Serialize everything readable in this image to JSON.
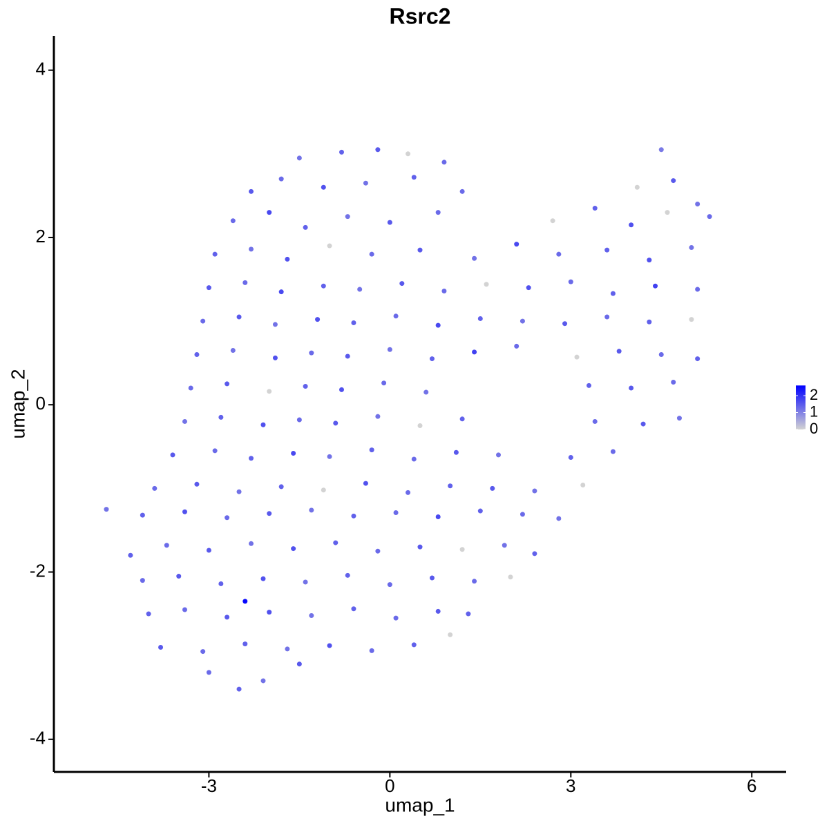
{
  "chart_data": {
    "type": "scatter",
    "title": "Rsrc2",
    "x_label": "umap_1",
    "y_label": "umap_2",
    "xlim": [
      -5.57,
      6.57
    ],
    "ylim": [
      -4.39,
      4.41
    ],
    "xticks": [
      -3,
      0,
      3,
      6
    ],
    "yticks": [
      -4,
      -2,
      0,
      2,
      4
    ],
    "grid": false,
    "color_low": "#d3d3d3",
    "color_high": "#0000ff",
    "color_lim": [
      0,
      2.6
    ],
    "color_ticks": [
      0,
      1,
      2
    ],
    "legend_position": "right",
    "x": [
      -1.5,
      -0.8,
      -0.2,
      0.3,
      0.9,
      4.5,
      -2.3,
      -1.8,
      -1.1,
      -0.4,
      0.4,
      1.2,
      4.1,
      4.7,
      5.1,
      -2.6,
      -2.0,
      -1.4,
      -0.7,
      0.0,
      0.8,
      2.7,
      3.4,
      4.0,
      4.6,
      5.3,
      -2.9,
      -2.3,
      -1.7,
      -1.0,
      -0.3,
      0.5,
      1.4,
      2.1,
      2.8,
      3.6,
      4.3,
      5.0,
      -3.0,
      -2.4,
      -1.8,
      -1.1,
      -0.5,
      0.2,
      0.9,
      1.6,
      2.3,
      3.0,
      3.7,
      4.4,
      5.1,
      -3.1,
      -2.5,
      -1.9,
      -1.2,
      -0.6,
      0.1,
      0.8,
      1.5,
      2.2,
      2.9,
      3.6,
      4.3,
      5.0,
      -3.2,
      -2.6,
      -1.9,
      -1.3,
      -0.7,
      0.0,
      0.7,
      1.4,
      2.1,
      3.1,
      3.8,
      4.5,
      5.1,
      -3.3,
      -2.7,
      -2.0,
      -1.4,
      -0.8,
      -0.1,
      0.6,
      3.3,
      4.0,
      4.7,
      -3.4,
      -2.8,
      -2.1,
      -1.5,
      -0.9,
      -0.2,
      0.5,
      1.2,
      3.4,
      4.2,
      4.8,
      -3.6,
      -2.9,
      -2.3,
      -1.6,
      -1.0,
      -0.3,
      0.4,
      1.1,
      1.8,
      3.0,
      3.7,
      -3.9,
      -3.2,
      -2.5,
      -1.8,
      -1.1,
      -0.4,
      0.3,
      1.0,
      1.7,
      2.4,
      3.2,
      -4.7,
      -4.1,
      -3.4,
      -2.7,
      -2.0,
      -1.3,
      -0.6,
      0.1,
      0.8,
      1.5,
      2.2,
      2.8,
      -4.3,
      -3.7,
      -3.0,
      -2.3,
      -1.6,
      -0.9,
      -0.2,
      0.5,
      1.2,
      1.9,
      2.4,
      -4.1,
      -3.5,
      -2.8,
      -2.1,
      -1.4,
      -0.7,
      0.0,
      0.7,
      1.4,
      2.0,
      -4.0,
      -3.4,
      -2.7,
      -2.4,
      -2.0,
      -1.3,
      -0.6,
      0.1,
      0.8,
      1.3,
      -3.8,
      -3.1,
      -2.4,
      -1.7,
      -1.0,
      -0.3,
      0.4,
      1.0,
      -3.0,
      -2.5,
      -2.1,
      -1.5
    ],
    "values": [
      2.95,
      3.02,
      3.05,
      3.0,
      2.9,
      3.05,
      2.55,
      2.7,
      2.6,
      2.65,
      2.72,
      2.55,
      2.6,
      2.68,
      2.4,
      2.2,
      2.3,
      2.12,
      2.25,
      2.18,
      2.3,
      2.2,
      2.35,
      2.15,
      2.3,
      2.25,
      1.8,
      1.86,
      1.74,
      1.9,
      1.8,
      1.85,
      1.75,
      1.92,
      1.8,
      1.85,
      1.73,
      1.88,
      1.4,
      1.46,
      1.35,
      1.42,
      1.38,
      1.45,
      1.36,
      1.44,
      1.4,
      1.47,
      1.33,
      1.42,
      1.38,
      1.0,
      1.05,
      0.96,
      1.02,
      0.98,
      1.06,
      0.95,
      1.03,
      1.0,
      0.97,
      1.05,
      0.99,
      1.02,
      0.6,
      0.65,
      0.56,
      0.62,
      0.58,
      0.66,
      0.55,
      0.63,
      0.7,
      0.57,
      0.64,
      0.6,
      0.55,
      0.2,
      0.25,
      0.16,
      0.22,
      0.18,
      0.26,
      0.15,
      0.23,
      0.2,
      0.27,
      -0.2,
      -0.15,
      -0.24,
      -0.18,
      -0.22,
      -0.14,
      -0.25,
      -0.17,
      -0.2,
      -0.23,
      -0.16,
      -0.6,
      -0.55,
      -0.64,
      -0.58,
      -0.62,
      -0.54,
      -0.65,
      -0.57,
      -0.6,
      -0.63,
      -0.56,
      -1.0,
      -0.95,
      -1.04,
      -0.98,
      -1.02,
      -0.94,
      -1.05,
      -0.97,
      -1.0,
      -1.03,
      -0.96,
      -1.25,
      -1.32,
      -1.28,
      -1.35,
      -1.3,
      -1.26,
      -1.33,
      -1.29,
      -1.34,
      -1.27,
      -1.31,
      -1.36,
      -1.8,
      -1.68,
      -1.74,
      -1.66,
      -1.72,
      -1.65,
      -1.75,
      -1.7,
      -1.73,
      -1.68,
      -1.78,
      -2.1,
      -2.05,
      -2.14,
      -2.08,
      -2.12,
      -2.04,
      -2.15,
      -2.07,
      -2.11,
      -2.06,
      -2.5,
      -2.45,
      -2.54,
      -2.35,
      -2.48,
      -2.52,
      -2.44,
      -2.55,
      -2.47,
      -2.5,
      -2.9,
      -2.95,
      -2.86,
      -2.92,
      -2.88,
      -2.94,
      -2.87,
      -2.75,
      -3.2,
      -3.4,
      -3.3,
      -3.1
    ],
    "color_values": [
      1.2,
      1.4,
      1.5,
      0,
      1.3,
      1.1,
      1.5,
      1.3,
      1.6,
      1.2,
      1.4,
      1.3,
      0,
      1.5,
      1.2,
      1.3,
      1.7,
      1.4,
      1.2,
      1.5,
      1.3,
      0,
      1.4,
      1.6,
      0,
      1.3,
      1.4,
      1.2,
      1.6,
      0,
      1.3,
      1.5,
      1.2,
      1.7,
      1.3,
      1.4,
      1.6,
      1.2,
      1.5,
      1.3,
      1.7,
      1.4,
      1.2,
      1.5,
      1.3,
      0,
      1.6,
      1.3,
      1.4,
      1.8,
      1.3,
      1.3,
      1.5,
      1.2,
      1.6,
      1.4,
      1.3,
      1.7,
      1.4,
      1.2,
      1.5,
      1.3,
      1.4,
      0,
      1.4,
      1.2,
      1.6,
      1.3,
      1.5,
      1.2,
      1.4,
      1.8,
      1.3,
      0,
      1.5,
      1.3,
      1.4,
      1.3,
      1.5,
      0,
      1.4,
      1.6,
      1.3,
      1.2,
      1.4,
      1.5,
      1.3,
      1.2,
      1.4,
      1.6,
      1.3,
      1.5,
      1.2,
      0,
      1.4,
      1.3,
      1.5,
      1.2,
      1.5,
      1.3,
      1.4,
      1.7,
      1.2,
      1.4,
      1.3,
      1.5,
      1.2,
      1.4,
      1.3,
      1.3,
      1.5,
      1.2,
      1.4,
      0,
      1.6,
      1.3,
      1.4,
      1.5,
      1.2,
      0,
      1.2,
      1.4,
      1.6,
      1.3,
      1.5,
      1.2,
      1.4,
      1.3,
      1.7,
      1.4,
      1.3,
      1.2,
      1.4,
      1.3,
      1.5,
      1.2,
      1.6,
      1.4,
      1.3,
      1.5,
      0,
      1.2,
      1.4,
      1.3,
      1.5,
      1.4,
      1.6,
      1.2,
      1.4,
      1.3,
      1.5,
      1.3,
      0,
      1.4,
      1.3,
      1.5,
      2.5,
      1.6,
      1.2,
      1.4,
      1.3,
      1.5,
      1.4,
      1.5,
      1.3,
      1.4,
      1.2,
      1.6,
      1.3,
      1.4,
      0,
      1.3,
      1.4,
      1.2,
      1.5
    ]
  }
}
